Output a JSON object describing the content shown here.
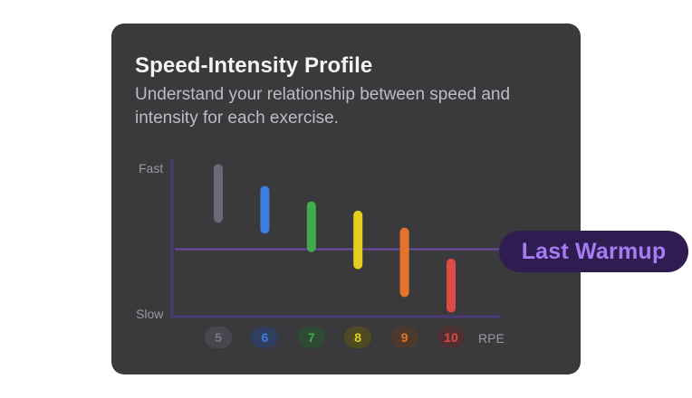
{
  "card": {
    "title": "Speed-Intensity Profile",
    "subtitle": "Understand your relationship between speed and intensity for each exercise."
  },
  "chart_data": {
    "type": "bar",
    "ylabel_top": "Fast",
    "ylabel_bottom": "Slow",
    "xlabel": "RPE",
    "categories": [
      "5",
      "6",
      "7",
      "8",
      "9",
      "10"
    ],
    "speed_range": [
      {
        "rpe": "5",
        "high": 0.95,
        "low": 0.63,
        "color": "#6e6679"
      },
      {
        "rpe": "6",
        "high": 0.81,
        "low": 0.56,
        "color": "#3b7fde"
      },
      {
        "rpe": "7",
        "high": 0.71,
        "low": 0.44,
        "color": "#3fae4a"
      },
      {
        "rpe": "8",
        "high": 0.65,
        "low": 0.33,
        "color": "#e4cf20"
      },
      {
        "rpe": "9",
        "high": 0.54,
        "low": 0.15,
        "color": "#e5732a"
      },
      {
        "rpe": "10",
        "high": 0.34,
        "low": 0.05,
        "color": "#df4a44"
      }
    ],
    "reference_line": {
      "label": "Last Warmup",
      "value": 0.43,
      "color": "#6a4ba8"
    },
    "badge_colors": {
      "5": {
        "bg": "#4a4650",
        "fg": "#7d7686"
      },
      "6": {
        "bg": "#303f60",
        "fg": "#3b7fde"
      },
      "7": {
        "bg": "#2f4a34",
        "fg": "#3fae4a"
      },
      "8": {
        "bg": "#4e4a22",
        "fg": "#e4cf20"
      },
      "9": {
        "bg": "#4e3a2c",
        "fg": "#e5732a"
      },
      "10": {
        "bg": "#4f3032",
        "fg": "#df4a44"
      }
    },
    "axis_color": "#4a3a78"
  }
}
